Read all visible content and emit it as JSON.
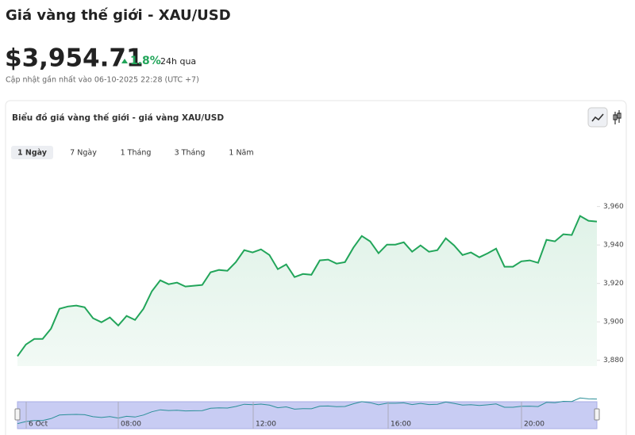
{
  "header": {
    "title": "Giá vàng thế giới - XAU/USD",
    "price": "$3,954.71",
    "change": "1.8%",
    "change_period": "24h qua",
    "updated": "Cập nhật gần nhất vào 06-10-2025 22:28 (UTC +7)"
  },
  "ranges": [
    "1 Ngày",
    "7 Ngày",
    "1 Tháng",
    "3 Tháng",
    "1 Năm"
  ],
  "chart_data": {
    "type": "area",
    "title": "Biểu đồ giá vàng thế giới - giá vàng XAU/USD",
    "color": "#22a55a",
    "values": [
      3882.1,
      3888.2,
      3891.1,
      3891.1,
      3896.5,
      3906.8,
      3908.0,
      3908.5,
      3907.6,
      3901.9,
      3899.8,
      3902.3,
      3898.1,
      3903.1,
      3901.0,
      3906.8,
      3915.9,
      3921.6,
      3919.6,
      3920.4,
      3918.4,
      3918.8,
      3919.2,
      3925.8,
      3927.0,
      3926.6,
      3931.1,
      3937.3,
      3936.1,
      3937.7,
      3934.8,
      3927.4,
      3929.9,
      3923.3,
      3924.9,
      3924.5,
      3932.0,
      3932.4,
      3930.3,
      3931.1,
      3938.6,
      3944.7,
      3941.9,
      3935.7,
      3940.2,
      3940.2,
      3941.4,
      3936.5,
      3939.8,
      3936.5,
      3937.3,
      3943.5,
      3939.8,
      3934.8,
      3936.1,
      3933.6,
      3935.7,
      3938.1,
      3928.7,
      3928.7,
      3931.5,
      3932.0,
      3930.7,
      3942.7,
      3941.9,
      3945.6,
      3945.2,
      3955.1,
      3952.6,
      3952.2
    ],
    "ylim": [
      3877,
      3985
    ],
    "yticks": [
      {
        "value": 3880,
        "label": "3,880"
      },
      {
        "value": 3900,
        "label": "3,900"
      },
      {
        "value": 3920,
        "label": "3,920"
      },
      {
        "value": 3940,
        "label": "3,940"
      },
      {
        "value": 3960,
        "label": "3,960"
      }
    ],
    "navigator_labels": [
      "6 Oct",
      "08:00",
      "12:00",
      "16:00",
      "20:00"
    ]
  }
}
